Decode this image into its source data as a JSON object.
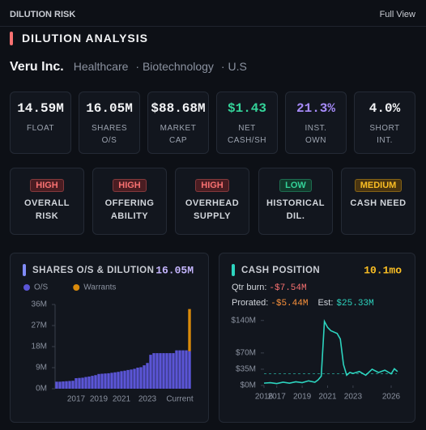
{
  "header": {
    "title": "DILUTION RISK",
    "link": "Full View"
  },
  "section": {
    "title": "DILUTION ANALYSIS"
  },
  "company": {
    "name": "Veru Inc.",
    "tags": [
      "Healthcare",
      "· Biotechnology",
      "· U.S"
    ]
  },
  "stats": [
    {
      "value": "14.59M",
      "label": "FLOAT",
      "color": "#f3f4f6"
    },
    {
      "value": "16.05M",
      "label": "SHARES O/S",
      "color": "#f3f4f6"
    },
    {
      "value": "$88.68M",
      "label": "MARKET CAP",
      "color": "#f3f4f6"
    },
    {
      "value": "$1.43",
      "label": "NET CASH/SH",
      "color": "#34d399"
    },
    {
      "value": "21.3%",
      "label": "INST. OWN",
      "color": "#a78bfa"
    },
    {
      "value": "4.0%",
      "label": "SHORT INT.",
      "color": "#f3f4f6"
    }
  ],
  "risks": [
    {
      "level": "HIGH",
      "label": "OVERALL RISK",
      "color": "#f87171",
      "bg": "#4a1d22"
    },
    {
      "level": "HIGH",
      "label": "OFFERING ABILITY",
      "color": "#f87171",
      "bg": "#4a1d22"
    },
    {
      "level": "HIGH",
      "label": "OVERHEAD SUPPLY",
      "color": "#f87171",
      "bg": "#4a1d22"
    },
    {
      "level": "LOW",
      "label": "HISTORICAL DIL.",
      "color": "#34d399",
      "bg": "#123a2c"
    },
    {
      "level": "MEDIUM",
      "label": "CASH NEED",
      "color": "#fbbf24",
      "bg": "#4a3510"
    }
  ],
  "chart_data": [
    {
      "type": "bar",
      "title": "SHARES O/S & DILUTION",
      "headline": "16.05M",
      "accent": "#818cf8",
      "stacked": true,
      "categories": [
        null,
        null,
        null,
        null,
        null,
        null,
        "2017",
        null,
        null,
        null,
        null,
        null,
        null,
        "2019",
        null,
        null,
        null,
        null,
        null,
        null,
        "2021",
        null,
        null,
        null,
        null,
        null,
        null,
        null,
        "2023",
        null,
        null,
        null,
        null,
        null,
        null,
        null,
        null,
        null,
        "Current",
        null,
        null,
        null
      ],
      "series": [
        {
          "name": "O/S",
          "color": "#5b55d6",
          "values": [
            3.0,
            3.0,
            3.1,
            3.2,
            3.3,
            3.4,
            4.5,
            4.6,
            4.7,
            5.0,
            5.2,
            5.5,
            5.8,
            6.3,
            6.4,
            6.5,
            6.6,
            6.8,
            7.0,
            7.2,
            7.5,
            7.7,
            8.0,
            8.2,
            8.5,
            9.0,
            9.2,
            10.0,
            11.0,
            14.5,
            15.2,
            15.2,
            15.2,
            15.2,
            15.2,
            15.2,
            15.2,
            16.4,
            16.4,
            16.4,
            16.4,
            16.05
          ]
        },
        {
          "name": "Warrants",
          "color": "#d98a0b",
          "values": [
            null,
            null,
            null,
            null,
            null,
            null,
            null,
            null,
            null,
            null,
            null,
            null,
            null,
            null,
            null,
            null,
            null,
            null,
            null,
            null,
            null,
            null,
            null,
            null,
            null,
            null,
            null,
            null,
            null,
            null,
            null,
            null,
            null,
            null,
            null,
            null,
            null,
            null,
            null,
            null,
            null,
            18
          ]
        }
      ],
      "ylim": [
        0,
        36
      ],
      "yticks": [
        {
          "value": 0,
          "label": "0M"
        },
        {
          "value": 9,
          "label": "9M"
        },
        {
          "value": 18,
          "label": "18M"
        },
        {
          "value": 27,
          "label": "27M"
        },
        {
          "value": 36,
          "label": "36M"
        }
      ]
    },
    {
      "type": "line",
      "title": "CASH POSITION",
      "headline": "10.1mo",
      "accent": "#2dd4bf",
      "burn": {
        "label": "Qtr burn:",
        "value": "-$7.54M"
      },
      "prorated": {
        "label": "Prorated:",
        "value": "-$5.44M"
      },
      "reference_line": {
        "label": "Est:",
        "value": 25.33,
        "value_label": "$25.33M"
      },
      "x": [
        2016.0,
        2016.5,
        2017.0,
        2017.5,
        2018.0,
        2018.5,
        2019.0,
        2019.5,
        2020.0,
        2020.25,
        2020.5,
        2020.75,
        2021.0,
        2021.25,
        2021.5,
        2021.75,
        2022.0,
        2022.25,
        2022.5,
        2022.75,
        2023.0,
        2023.5,
        2024.0,
        2024.5,
        2025.0,
        2025.5,
        2026.0,
        2026.25,
        2026.5
      ],
      "series": [
        {
          "name": "Cash",
          "color": "#2dd4bf",
          "values": [
            5,
            6,
            4,
            7,
            5,
            8,
            6,
            10,
            7,
            12,
            20,
            138,
            125,
            118,
            115,
            112,
            100,
            45,
            22,
            28,
            26,
            30,
            22,
            35,
            28,
            33,
            25,
            36,
            30
          ]
        }
      ],
      "xlim": [
        2016,
        2026.7
      ],
      "xticks": [
        2016,
        2017,
        2019,
        2021,
        2023,
        2026
      ],
      "ylim": [
        0,
        150
      ],
      "yticks": [
        {
          "value": 0,
          "label": "$0M"
        },
        {
          "value": 35,
          "label": "$35M"
        },
        {
          "value": 70,
          "label": "$70M"
        },
        {
          "value": 140,
          "label": "$140M"
        }
      ]
    }
  ]
}
